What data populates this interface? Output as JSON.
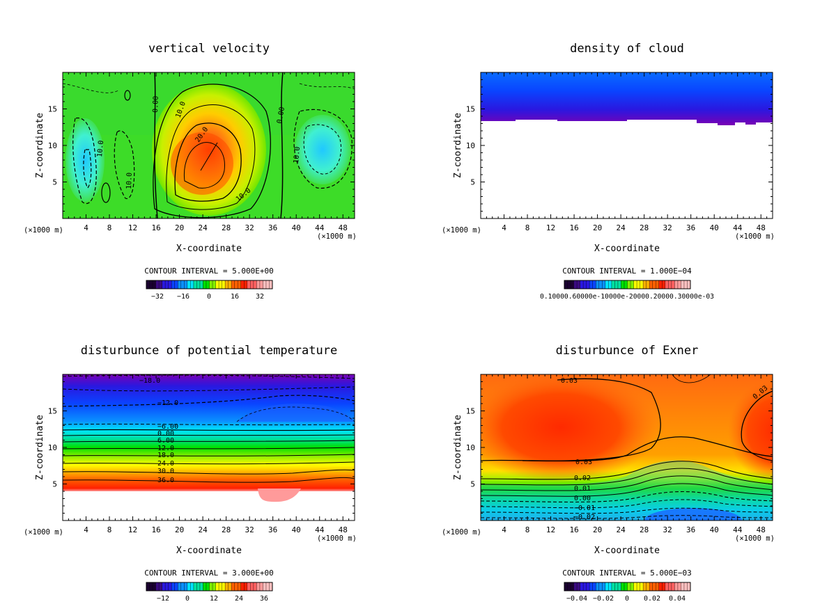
{
  "chart_data": [
    {
      "type": "heatmap",
      "title": "vertical velocity",
      "xlabel": "X-coordinate",
      "ylabel": "Z-coordinate",
      "x_unit": "(×1000 m)",
      "x_ticks": [
        "4",
        "8",
        "12",
        "16",
        "20",
        "24",
        "28",
        "32",
        "36",
        "40",
        "44",
        "48"
      ],
      "y_ticks": [
        "5",
        "10",
        "15"
      ],
      "xlim": [
        0,
        50
      ],
      "ylim": [
        0,
        20
      ],
      "contour_interval": "CONTOUR INTERVAL = 5.000E+00",
      "colorbar_ticks": [
        "−32",
        "−16",
        "0",
        "16",
        "32"
      ],
      "contour_labels": [
        "0.00",
        "10.0",
        "20.0",
        "0.00",
        "10.0",
        "10.0",
        "10.0",
        "10.0"
      ],
      "description_values": {
        "updraft_center_x": 25,
        "updraft_center_z": 9,
        "updraft_max": 30,
        "downdraft_left_x": 4,
        "downdraft_right_x": 45
      }
    },
    {
      "type": "heatmap",
      "title": "density of cloud",
      "xlabel": "X-coordinate",
      "ylabel": "Z-coordinate",
      "x_unit": "(×1000 m)",
      "x_ticks": [
        "4",
        "8",
        "12",
        "16",
        "20",
        "24",
        "28",
        "32",
        "36",
        "40",
        "44",
        "48"
      ],
      "y_ticks": [
        "5",
        "10",
        "15"
      ],
      "xlim": [
        0,
        50
      ],
      "ylim": [
        0,
        20
      ],
      "contour_interval": "CONTOUR INTERVAL = 1.000E−04",
      "colorbar_label": "0.10000.60000e-10000e-20000.20000.30000e-03",
      "cloud_base_z": 13,
      "cloud_top_z": 19.5
    },
    {
      "type": "heatmap",
      "title": "disturbunce of potential temperature",
      "xlabel": "X-coordinate",
      "ylabel": "Z-coordinate",
      "x_unit": "(×1000 m)",
      "x_ticks": [
        "4",
        "8",
        "12",
        "16",
        "20",
        "24",
        "28",
        "32",
        "36",
        "40",
        "44",
        "48"
      ],
      "y_ticks": [
        "5",
        "10",
        "15"
      ],
      "xlim": [
        0,
        50
      ],
      "ylim": [
        0,
        20
      ],
      "contour_interval": "CONTOUR INTERVAL = 3.000E+00",
      "colorbar_ticks": [
        "−12",
        "0",
        "12",
        "24",
        "36"
      ],
      "contour_labels": [
        "−18.0",
        "−12.0",
        "−6.00",
        "0.00",
        "6.00",
        "12.0",
        "18.0",
        "24.0",
        "30.0",
        "36.0"
      ],
      "contour_label_z": [
        19.2,
        16.7,
        12.8,
        12.0,
        11.2,
        10.3,
        9.2,
        8.1,
        6.9,
        5.7
      ]
    },
    {
      "type": "heatmap",
      "title": "disturbunce of Exner",
      "xlabel": "X-coordinate",
      "ylabel": "Z-coordinate",
      "x_unit": "(×1000 m)",
      "x_ticks": [
        "4",
        "8",
        "12",
        "16",
        "20",
        "24",
        "28",
        "32",
        "36",
        "40",
        "44",
        "48"
      ],
      "y_ticks": [
        "5",
        "10",
        "15"
      ],
      "xlim": [
        0,
        50
      ],
      "ylim": [
        0,
        20
      ],
      "contour_interval": "CONTOUR INTERVAL = 5.000E−03",
      "colorbar_ticks": [
        "−0.04",
        "−0.02",
        "0",
        "0.02",
        "0.04"
      ],
      "contour_labels": [
        "0.03",
        "0.03",
        "0.03",
        "0.02",
        "0.01",
        "0.00",
        "−0.01",
        "−0.02"
      ]
    }
  ],
  "colors": {
    "c_violet": "#7a00b4",
    "c_blue": "#0033ff",
    "c_cyan": "#00e5ff",
    "c_green": "#00e000",
    "c_yellow": "#ffff00",
    "c_orange": "#ff9900",
    "c_red": "#ff2000",
    "c_pink": "#ff9a9a"
  }
}
